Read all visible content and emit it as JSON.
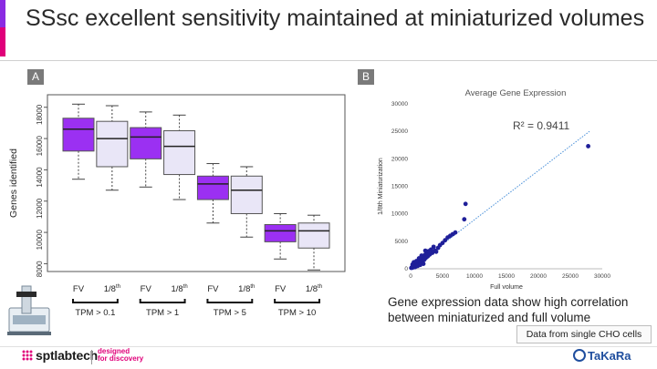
{
  "title": "SSsc excellent sensitivity maintained at miniaturized volumes",
  "panels": {
    "a_label": "A",
    "b_label": "B"
  },
  "colors": {
    "purple": "#9b30f2",
    "lavender": "#e9e6f7",
    "blue_points": "#1f1f99",
    "trend": "#4a90d9",
    "accent": "#8a2be2",
    "pink": "#e0007a"
  },
  "chart_data": [
    {
      "type": "box",
      "ylabel": "Genes identified",
      "ylim": [
        7500,
        18800
      ],
      "yticks": [
        8000,
        10000,
        12000,
        14000,
        16000,
        18000
      ],
      "categories": [
        "FV",
        "1/8th",
        "FV",
        "1/8th",
        "FV",
        "1/8th",
        "FV",
        "1/8th"
      ],
      "groups": [
        "TPM > 0.1",
        "TPM > 1",
        "TPM > 5",
        "TPM > 10"
      ],
      "boxes": [
        {
          "label": "FV",
          "group": "TPM > 0.1",
          "min": 13400,
          "q1": 15200,
          "median": 16600,
          "q3": 17300,
          "max": 18200,
          "fill": "purple"
        },
        {
          "label": "1/8th",
          "group": "TPM > 0.1",
          "min": 12700,
          "q1": 14200,
          "median": 16000,
          "q3": 17100,
          "max": 18100,
          "fill": "lavender"
        },
        {
          "label": "FV",
          "group": "TPM > 1",
          "min": 12900,
          "q1": 14700,
          "median": 16100,
          "q3": 16700,
          "max": 17700,
          "fill": "purple"
        },
        {
          "label": "1/8th",
          "group": "TPM > 1",
          "min": 12100,
          "q1": 13700,
          "median": 15500,
          "q3": 16500,
          "max": 17500,
          "fill": "lavender"
        },
        {
          "label": "FV",
          "group": "TPM > 5",
          "min": 10600,
          "q1": 12100,
          "median": 13100,
          "q3": 13600,
          "max": 14400,
          "fill": "purple"
        },
        {
          "label": "1/8th",
          "group": "TPM > 5",
          "min": 9700,
          "q1": 11200,
          "median": 12700,
          "q3": 13600,
          "max": 14200,
          "fill": "lavender"
        },
        {
          "label": "FV",
          "group": "TPM > 10",
          "min": 8300,
          "q1": 9400,
          "median": 10100,
          "q3": 10500,
          "max": 11200,
          "fill": "purple"
        },
        {
          "label": "1/8th",
          "group": "TPM > 10",
          "min": 7600,
          "q1": 9000,
          "median": 10100,
          "q3": 10600,
          "max": 11100,
          "fill": "lavender"
        }
      ]
    },
    {
      "type": "scatter",
      "title": "Average Gene Expression",
      "xlabel": "Full volume",
      "ylabel": "1/8th Miniaturization",
      "xlim": [
        0,
        30000
      ],
      "ylim": [
        0,
        30000
      ],
      "xticks": [
        0,
        5000,
        10000,
        15000,
        20000,
        25000,
        30000
      ],
      "yticks": [
        0,
        5000,
        10000,
        15000,
        20000,
        25000,
        30000
      ],
      "annotation": "R² = 0.9411",
      "trendline": {
        "x": [
          0,
          28000
        ],
        "y": [
          0,
          25000
        ],
        "style": "dotted"
      },
      "points": [
        [
          100,
          150
        ],
        [
          200,
          300
        ],
        [
          300,
          200
        ],
        [
          400,
          500
        ],
        [
          500,
          350
        ],
        [
          600,
          700
        ],
        [
          700,
          450
        ],
        [
          800,
          900
        ],
        [
          900,
          600
        ],
        [
          1000,
          1100
        ],
        [
          1100,
          800
        ],
        [
          1200,
          1300
        ],
        [
          1300,
          1000
        ],
        [
          1400,
          1500
        ],
        [
          1500,
          1200
        ],
        [
          1600,
          1800
        ],
        [
          1700,
          1300
        ],
        [
          1800,
          2000
        ],
        [
          1900,
          1500
        ],
        [
          2000,
          2200
        ],
        [
          2100,
          1600
        ],
        [
          2200,
          2500
        ],
        [
          2300,
          1900
        ],
        [
          2400,
          2700
        ],
        [
          2500,
          2100
        ],
        [
          2600,
          3000
        ],
        [
          2700,
          2300
        ],
        [
          2800,
          3200
        ],
        [
          3000,
          2600
        ],
        [
          3200,
          3500
        ],
        [
          3400,
          2900
        ],
        [
          3600,
          4000
        ],
        [
          3800,
          3300
        ],
        [
          4000,
          3100
        ],
        [
          4300,
          3800
        ],
        [
          4600,
          4300
        ],
        [
          5000,
          4700
        ],
        [
          5400,
          5200
        ],
        [
          5800,
          5700
        ],
        [
          6200,
          6000
        ],
        [
          6600,
          6300
        ],
        [
          7000,
          6600
        ],
        [
          8400,
          9000
        ],
        [
          8600,
          11800
        ],
        [
          27800,
          22300
        ],
        [
          300,
          800
        ],
        [
          500,
          1200
        ],
        [
          700,
          300
        ],
        [
          900,
          1400
        ],
        [
          1100,
          500
        ],
        [
          1300,
          1900
        ],
        [
          1500,
          700
        ],
        [
          1700,
          2400
        ],
        [
          2000,
          900
        ],
        [
          2300,
          3300
        ]
      ]
    }
  ],
  "caption": "Gene expression data show high correlation between miniaturized and full volume",
  "note": "Data from single CHO cells",
  "footer": {
    "spt_logo": "sptlabtech",
    "tagline_line1": "designed",
    "tagline_line2": "for discovery",
    "takara": "TaKaRa"
  }
}
